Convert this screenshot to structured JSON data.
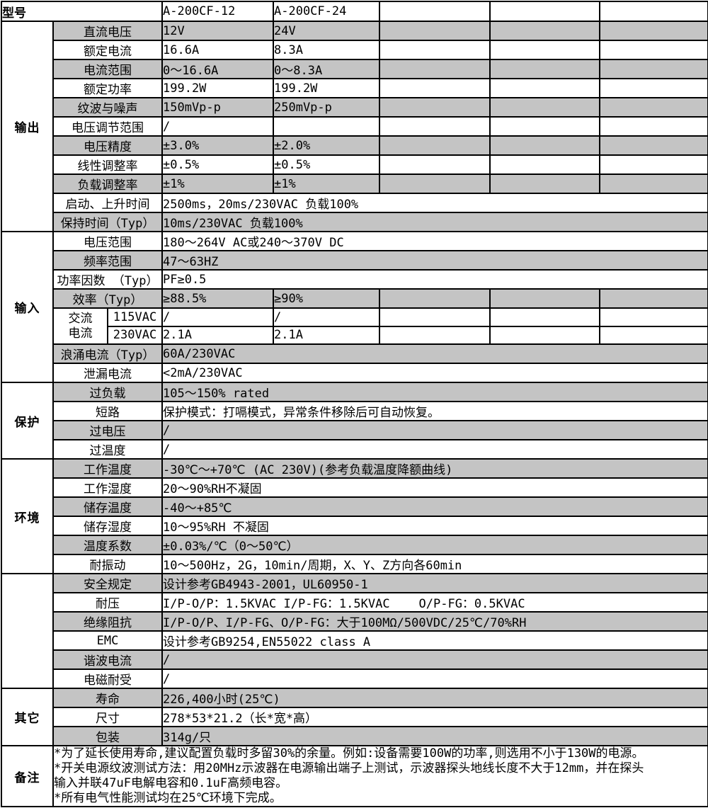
{
  "table": {
    "stripe_color": "#c4c4c4",
    "grid_color": "#000000",
    "header": {
      "label": "型号",
      "models": [
        "A-200CF-12",
        "A-200CF-24"
      ]
    },
    "sections": [
      {
        "id": "output",
        "name": "输出",
        "rows": [
          {
            "label": "直流电压",
            "values": [
              "12V",
              "24V"
            ],
            "shade": true
          },
          {
            "label": "额定电流",
            "values": [
              "16.6A",
              "8.3A"
            ],
            "shade": false
          },
          {
            "label": "电流范围",
            "values": [
              "0～16.6A",
              "0～8.3A"
            ],
            "shade": true
          },
          {
            "label": "额定功率",
            "values": [
              "199.2W",
              "199.2W"
            ],
            "shade": false
          },
          {
            "label": "纹波与噪声",
            "values": [
              "150mVp-p",
              "250mVp-p"
            ],
            "shade": true
          },
          {
            "label": "电压调节范围",
            "values": [
              "/",
              ""
            ],
            "shade": false
          },
          {
            "label": "电压精度",
            "values": [
              "±3.0%",
              "±2.0%"
            ],
            "shade": true
          },
          {
            "label": "线性调整率",
            "values": [
              "±0.5%",
              "±0.5%"
            ],
            "shade": false
          },
          {
            "label": "负载调整率",
            "values": [
              "±1%",
              "±1%"
            ],
            "shade": true
          },
          {
            "label": "启动、上升时间",
            "span": "2500ms，20ms/230VAC 负载100%",
            "shade": false
          },
          {
            "label": "保持时间（Typ）",
            "span": "10ms/230VAC 负载100%",
            "shade": true
          }
        ]
      },
      {
        "id": "input",
        "name": "输入",
        "rows": [
          {
            "label": "电压范围",
            "span": "180～264V AC或240～370V DC",
            "shade": false
          },
          {
            "label": "频率范围",
            "span": "47～63HZ",
            "shade": true
          },
          {
            "label": "功率因数 （Typ）",
            "span": "PF≥0.5",
            "shade": false
          },
          {
            "label": "效率（Typ）",
            "values": [
              "≥88.5%",
              "≥90%"
            ],
            "shade": true
          },
          {
            "group": "交流\n电流",
            "sub": "115VAC",
            "values": [
              "/",
              "/"
            ],
            "shade": false
          },
          {
            "sub": "230VAC",
            "values": [
              "2.1A",
              "2.1A"
            ],
            "shade": false
          },
          {
            "label": "浪涌电流（Typ）",
            "span": "60A/230VAC",
            "shade": true
          },
          {
            "label": "泄漏电流",
            "span": "<2mA/230VAC",
            "shade": false
          }
        ]
      },
      {
        "id": "protection",
        "name": "保护",
        "rows": [
          {
            "label": "过负载",
            "span": "105～150% rated",
            "shade": true
          },
          {
            "label": "短路",
            "span": "保护模式：打嗝模式，异常条件移除后可自动恢复。",
            "shade": false
          },
          {
            "label": "过电压",
            "span": "/",
            "shade": true
          },
          {
            "label": "过温度",
            "span": "/",
            "shade": false
          }
        ]
      },
      {
        "id": "environment",
        "name": "环境",
        "rows": [
          {
            "label": "工作温度",
            "span": "-30℃～+70℃ (AC 230V)(参考负载温度降额曲线)",
            "shade": true
          },
          {
            "label": "工作湿度",
            "span": "20～90%RH不凝固",
            "shade": false
          },
          {
            "label": "储存温度",
            "span": "-40～+85℃",
            "shade": true
          },
          {
            "label": "储存湿度",
            "span": "10～95%RH 不凝固",
            "shade": false
          },
          {
            "label": "温度系数",
            "span": "±0.03%/℃（0～50℃）",
            "shade": true
          },
          {
            "label": "耐振动",
            "span": "10～500Hz，2G，10min/周期，X、Y、Z方向各60min",
            "shade": false
          }
        ]
      },
      {
        "id": "safety-emc",
        "name": "",
        "rows": [
          {
            "label": "安全规定",
            "span": "设计参考GB4943-2001，UL60950-1",
            "shade": true
          },
          {
            "label": "耐压",
            "span": "I/P-O/P：1.5KVAC I/P-FG：1.5KVAC    O/P-FG：0.5KVAC",
            "shade": false
          },
          {
            "label": "绝缘阻抗",
            "span": "I/P-O/P、I/P-FG、O/P-FG：大于100MΩ/500VDC/25℃/70%RH",
            "shade": true
          },
          {
            "label": "EMC",
            "span": "设计参考GB9254,EN55022 class A",
            "shade": false
          },
          {
            "label": "谐波电流",
            "span": "/",
            "shade": true
          },
          {
            "label": "电磁耐受",
            "span": "/",
            "shade": false
          }
        ]
      },
      {
        "id": "other",
        "name": "其它",
        "rows": [
          {
            "label": "寿命",
            "span": "226,400小时(25℃)",
            "shade": true
          },
          {
            "label": "尺寸",
            "span": "278*53*21.2（长*宽*高）",
            "shade": false
          },
          {
            "label": "包装",
            "span": "314g/只",
            "shade": true
          }
        ]
      }
    ],
    "notes": {
      "label": "备注",
      "lines": [
        "*为了延长使用寿命,建议配置负载时多留30%的余量。例如:设备需要100W的功率,则选用不小于130W的电源。",
        "*开关电源纹波测试方法：用20MHz示波器在电源输出端子上测试，示波器探头地线长度不大于12mm，并在探头",
        "输入并联47uF电解电容和0.1uF高频电容。",
        "*所有电气性能测试均在25℃环境下完成。"
      ]
    }
  }
}
